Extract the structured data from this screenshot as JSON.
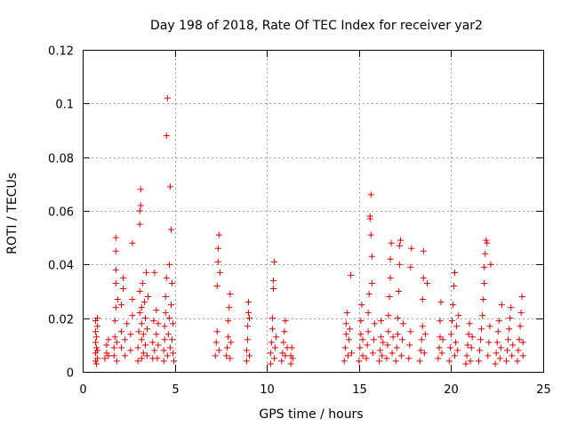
{
  "chart_data": {
    "type": "scatter",
    "title": "Day 198 of 2018, Rate Of TEC Index for receiver yar2",
    "xlabel": "GPS time / hours",
    "ylabel": "ROTI / TECUs",
    "xlim": [
      0,
      25
    ],
    "ylim": [
      0,
      0.12
    ],
    "x_ticks": [
      0,
      5,
      10,
      15,
      20,
      25
    ],
    "y_ticks": [
      0,
      0.02,
      0.04,
      0.06,
      0.08,
      0.1,
      0.12
    ],
    "x_tick_labels": [
      "0",
      "5",
      "10",
      "15",
      "20",
      "25"
    ],
    "y_tick_labels": [
      "0",
      "0.02",
      "0.04",
      "0.06",
      "0.08",
      "0.1",
      "0.12"
    ],
    "grid": true,
    "marker": "+",
    "color": "#e00000",
    "series": [
      {
        "name": "ROTI",
        "points": [
          [
            0.7,
            0.004
          ],
          [
            0.7,
            0.007
          ],
          [
            0.7,
            0.011
          ],
          [
            0.7,
            0.015
          ],
          [
            0.7,
            0.019
          ],
          [
            0.75,
            0.003
          ],
          [
            0.75,
            0.009
          ],
          [
            0.75,
            0.013
          ],
          [
            0.8,
            0.005
          ],
          [
            0.8,
            0.008
          ],
          [
            0.8,
            0.017
          ],
          [
            0.8,
            0.02
          ],
          [
            1.2,
            0.005
          ],
          [
            1.3,
            0.007
          ],
          [
            1.3,
            0.01
          ],
          [
            1.4,
            0.006
          ],
          [
            1.4,
            0.012
          ],
          [
            1.7,
            0.006
          ],
          [
            1.7,
            0.009
          ],
          [
            1.75,
            0.013
          ],
          [
            1.75,
            0.019
          ],
          [
            1.8,
            0.024
          ],
          [
            1.8,
            0.033
          ],
          [
            1.8,
            0.038
          ],
          [
            1.8,
            0.045
          ],
          [
            1.8,
            0.05
          ],
          [
            1.85,
            0.004
          ],
          [
            1.85,
            0.011
          ],
          [
            1.9,
            0.027
          ],
          [
            2.1,
            0.009
          ],
          [
            2.1,
            0.015
          ],
          [
            2.1,
            0.025
          ],
          [
            2.2,
            0.031
          ],
          [
            2.2,
            0.035
          ],
          [
            2.3,
            0.006
          ],
          [
            2.3,
            0.012
          ],
          [
            2.4,
            0.018
          ],
          [
            2.6,
            0.008
          ],
          [
            2.6,
            0.014
          ],
          [
            2.7,
            0.021
          ],
          [
            2.7,
            0.027
          ],
          [
            2.7,
            0.048
          ],
          [
            3.0,
            0.004
          ],
          [
            3.0,
            0.009
          ],
          [
            3.05,
            0.015
          ],
          [
            3.1,
            0.022
          ],
          [
            3.1,
            0.03
          ],
          [
            3.1,
            0.055
          ],
          [
            3.1,
            0.06
          ],
          [
            3.15,
            0.062
          ],
          [
            3.15,
            0.068
          ],
          [
            3.2,
            0.005
          ],
          [
            3.2,
            0.012
          ],
          [
            3.2,
            0.018
          ],
          [
            3.2,
            0.024
          ],
          [
            3.25,
            0.033
          ],
          [
            3.3,
            0.007
          ],
          [
            3.3,
            0.014
          ],
          [
            3.35,
            0.026
          ],
          [
            3.4,
            0.01
          ],
          [
            3.4,
            0.02
          ],
          [
            3.45,
            0.037
          ],
          [
            3.5,
            0.006
          ],
          [
            3.5,
            0.016
          ],
          [
            3.55,
            0.028
          ],
          [
            3.8,
            0.005
          ],
          [
            3.8,
            0.011
          ],
          [
            3.85,
            0.019
          ],
          [
            3.9,
            0.008
          ],
          [
            3.9,
            0.037
          ],
          [
            4.0,
            0.014
          ],
          [
            4.0,
            0.023
          ],
          [
            4.05,
            0.005
          ],
          [
            4.1,
            0.01
          ],
          [
            4.1,
            0.018
          ],
          [
            4.4,
            0.004
          ],
          [
            4.4,
            0.008
          ],
          [
            4.45,
            0.012
          ],
          [
            4.45,
            0.017
          ],
          [
            4.5,
            0.022
          ],
          [
            4.5,
            0.028
          ],
          [
            4.55,
            0.035
          ],
          [
            4.55,
            0.088
          ],
          [
            4.6,
            0.102
          ],
          [
            4.6,
            0.006
          ],
          [
            4.65,
            0.014
          ],
          [
            4.7,
            0.02
          ],
          [
            4.7,
            0.04
          ],
          [
            4.75,
            0.069
          ],
          [
            4.75,
            0.009
          ],
          [
            4.8,
            0.025
          ],
          [
            4.8,
            0.053
          ],
          [
            4.85,
            0.033
          ],
          [
            4.85,
            0.012
          ],
          [
            4.9,
            0.007
          ],
          [
            4.9,
            0.018
          ],
          [
            4.95,
            0.004
          ],
          [
            7.2,
            0.006
          ],
          [
            7.25,
            0.011
          ],
          [
            7.3,
            0.015
          ],
          [
            7.3,
            0.032
          ],
          [
            7.35,
            0.041
          ],
          [
            7.35,
            0.046
          ],
          [
            7.4,
            0.051
          ],
          [
            7.4,
            0.008
          ],
          [
            7.45,
            0.037
          ],
          [
            7.8,
            0.006
          ],
          [
            7.85,
            0.009
          ],
          [
            7.9,
            0.013
          ],
          [
            7.9,
            0.019
          ],
          [
            7.95,
            0.024
          ],
          [
            8.0,
            0.029
          ],
          [
            8.0,
            0.005
          ],
          [
            8.05,
            0.011
          ],
          [
            8.9,
            0.004
          ],
          [
            8.9,
            0.008
          ],
          [
            8.95,
            0.012
          ],
          [
            8.95,
            0.017
          ],
          [
            9.0,
            0.022
          ],
          [
            9.0,
            0.026
          ],
          [
            9.05,
            0.006
          ],
          [
            9.05,
            0.02
          ],
          [
            10.2,
            0.003
          ],
          [
            10.2,
            0.007
          ],
          [
            10.25,
            0.011
          ],
          [
            10.3,
            0.016
          ],
          [
            10.3,
            0.02
          ],
          [
            10.35,
            0.031
          ],
          [
            10.35,
            0.034
          ],
          [
            10.4,
            0.041
          ],
          [
            10.4,
            0.005
          ],
          [
            10.45,
            0.009
          ],
          [
            10.5,
            0.013
          ],
          [
            10.8,
            0.004
          ],
          [
            10.85,
            0.007
          ],
          [
            10.9,
            0.011
          ],
          [
            10.95,
            0.015
          ],
          [
            11.0,
            0.006
          ],
          [
            11.0,
            0.019
          ],
          [
            11.1,
            0.009
          ],
          [
            11.3,
            0.003
          ],
          [
            11.3,
            0.006
          ],
          [
            11.35,
            0.009
          ],
          [
            11.4,
            0.005
          ],
          [
            14.2,
            0.004
          ],
          [
            14.25,
            0.009
          ],
          [
            14.3,
            0.014
          ],
          [
            14.3,
            0.018
          ],
          [
            14.35,
            0.022
          ],
          [
            14.4,
            0.006
          ],
          [
            14.45,
            0.012
          ],
          [
            14.5,
            0.016
          ],
          [
            14.55,
            0.036
          ],
          [
            14.6,
            0.007
          ],
          [
            15.0,
            0.004
          ],
          [
            15.05,
            0.009
          ],
          [
            15.1,
            0.014
          ],
          [
            15.1,
            0.019
          ],
          [
            15.15,
            0.025
          ],
          [
            15.2,
            0.006
          ],
          [
            15.2,
            0.012
          ],
          [
            15.4,
            0.005
          ],
          [
            15.45,
            0.01
          ],
          [
            15.5,
            0.015
          ],
          [
            15.5,
            0.022
          ],
          [
            15.55,
            0.029
          ],
          [
            15.6,
            0.057
          ],
          [
            15.6,
            0.058
          ],
          [
            15.65,
            0.051
          ],
          [
            15.65,
            0.066
          ],
          [
            15.7,
            0.043
          ],
          [
            15.7,
            0.033
          ],
          [
            15.75,
            0.007
          ],
          [
            15.8,
            0.012
          ],
          [
            15.85,
            0.018
          ],
          [
            16.1,
            0.004
          ],
          [
            16.15,
            0.008
          ],
          [
            16.2,
            0.013
          ],
          [
            16.2,
            0.019
          ],
          [
            16.25,
            0.006
          ],
          [
            16.3,
            0.011
          ],
          [
            16.5,
            0.005
          ],
          [
            16.55,
            0.01
          ],
          [
            16.6,
            0.015
          ],
          [
            16.6,
            0.021
          ],
          [
            16.65,
            0.028
          ],
          [
            16.7,
            0.035
          ],
          [
            16.7,
            0.042
          ],
          [
            16.75,
            0.048
          ],
          [
            16.8,
            0.007
          ],
          [
            16.85,
            0.013
          ],
          [
            17.0,
            0.004
          ],
          [
            17.05,
            0.009
          ],
          [
            17.1,
            0.014
          ],
          [
            17.1,
            0.02
          ],
          [
            17.15,
            0.03
          ],
          [
            17.2,
            0.04
          ],
          [
            17.2,
            0.047
          ],
          [
            17.25,
            0.049
          ],
          [
            17.3,
            0.006
          ],
          [
            17.35,
            0.012
          ],
          [
            17.4,
            0.018
          ],
          [
            17.7,
            0.005
          ],
          [
            17.75,
            0.01
          ],
          [
            17.8,
            0.015
          ],
          [
            17.8,
            0.039
          ],
          [
            17.85,
            0.046
          ],
          [
            18.3,
            0.004
          ],
          [
            18.35,
            0.008
          ],
          [
            18.4,
            0.012
          ],
          [
            18.45,
            0.017
          ],
          [
            18.45,
            0.027
          ],
          [
            18.5,
            0.035
          ],
          [
            18.5,
            0.045
          ],
          [
            18.55,
            0.007
          ],
          [
            18.6,
            0.014
          ],
          [
            18.7,
            0.033
          ],
          [
            19.3,
            0.005
          ],
          [
            19.35,
            0.009
          ],
          [
            19.4,
            0.013
          ],
          [
            19.4,
            0.019
          ],
          [
            19.45,
            0.026
          ],
          [
            19.5,
            0.007
          ],
          [
            19.55,
            0.012
          ],
          [
            19.9,
            0.004
          ],
          [
            19.95,
            0.009
          ],
          [
            20.0,
            0.014
          ],
          [
            20.05,
            0.019
          ],
          [
            20.1,
            0.025
          ],
          [
            20.15,
            0.032
          ],
          [
            20.2,
            0.037
          ],
          [
            20.2,
            0.006
          ],
          [
            20.25,
            0.011
          ],
          [
            20.3,
            0.017
          ],
          [
            20.35,
            0.008
          ],
          [
            20.4,
            0.021
          ],
          [
            20.8,
            0.003
          ],
          [
            20.85,
            0.006
          ],
          [
            20.9,
            0.01
          ],
          [
            20.95,
            0.014
          ],
          [
            21.0,
            0.018
          ],
          [
            21.05,
            0.004
          ],
          [
            21.1,
            0.009
          ],
          [
            21.15,
            0.013
          ],
          [
            21.5,
            0.004
          ],
          [
            21.55,
            0.008
          ],
          [
            21.6,
            0.012
          ],
          [
            21.65,
            0.016
          ],
          [
            21.7,
            0.021
          ],
          [
            21.75,
            0.027
          ],
          [
            21.8,
            0.033
          ],
          [
            21.8,
            0.039
          ],
          [
            21.85,
            0.044
          ],
          [
            21.9,
            0.049
          ],
          [
            21.95,
            0.048
          ],
          [
            22.0,
            0.006
          ],
          [
            22.05,
            0.011
          ],
          [
            22.1,
            0.017
          ],
          [
            22.15,
            0.04
          ],
          [
            22.4,
            0.003
          ],
          [
            22.45,
            0.007
          ],
          [
            22.5,
            0.011
          ],
          [
            22.55,
            0.015
          ],
          [
            22.6,
            0.019
          ],
          [
            22.65,
            0.005
          ],
          [
            22.7,
            0.009
          ],
          [
            22.75,
            0.025
          ],
          [
            23.0,
            0.004
          ],
          [
            23.05,
            0.008
          ],
          [
            23.1,
            0.012
          ],
          [
            23.15,
            0.016
          ],
          [
            23.2,
            0.02
          ],
          [
            23.25,
            0.024
          ],
          [
            23.3,
            0.006
          ],
          [
            23.35,
            0.01
          ],
          [
            23.6,
            0.004
          ],
          [
            23.65,
            0.008
          ],
          [
            23.7,
            0.012
          ],
          [
            23.75,
            0.017
          ],
          [
            23.8,
            0.022
          ],
          [
            23.85,
            0.028
          ],
          [
            23.9,
            0.006
          ],
          [
            23.9,
            0.011
          ]
        ]
      }
    ]
  }
}
